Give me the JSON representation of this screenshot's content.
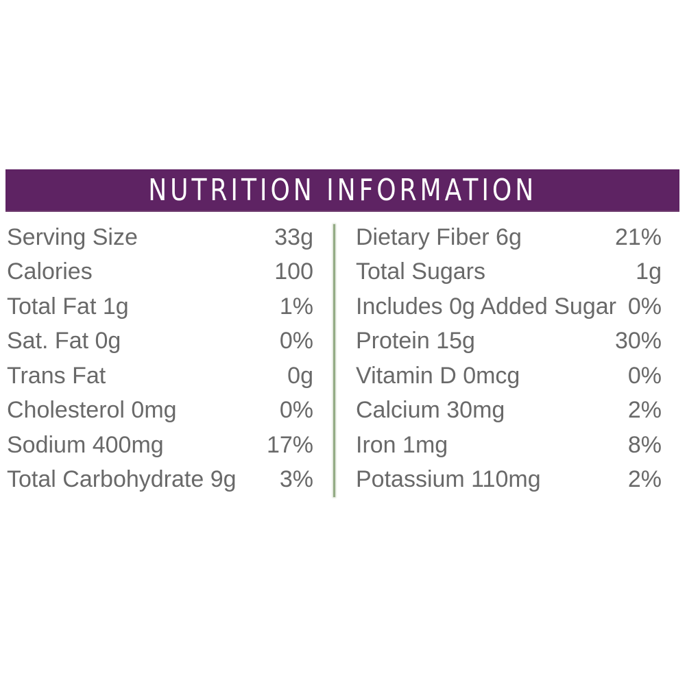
{
  "header": {
    "title": "NUTRITION INFORMATION",
    "background_color": "#5e2363",
    "text_color": "#ffffff"
  },
  "table": {
    "text_color": "#696969",
    "divider_color": "#94ab85",
    "left_column": {
      "rows": [
        {
          "label": "Serving Size",
          "value": "33g"
        },
        {
          "label": "Calories",
          "value": "100"
        },
        {
          "label": "Total Fat 1g",
          "value": "1%"
        },
        {
          "label": "Sat. Fat 0g",
          "value": "0%"
        },
        {
          "label": "Trans Fat",
          "value": "0g"
        },
        {
          "label": "Cholesterol 0mg",
          "value": "0%"
        },
        {
          "label": "Sodium 400mg",
          "value": "17%"
        },
        {
          "label": "Total Carbohydrate 9g",
          "value": "3%"
        }
      ]
    },
    "right_column": {
      "rows": [
        {
          "label": "Dietary Fiber 6g",
          "value": "21%"
        },
        {
          "label": "Total Sugars",
          "value": "1g"
        },
        {
          "label": "Includes 0g Added Sugar",
          "value": "0%"
        },
        {
          "label": "Protein 15g",
          "value": "30%"
        },
        {
          "label": "Vitamin D 0mcg",
          "value": "0%"
        },
        {
          "label": "Calcium 30mg",
          "value": "2%"
        },
        {
          "label": "Iron 1mg",
          "value": "8%"
        },
        {
          "label": "Potassium 110mg",
          "value": "2%"
        }
      ]
    }
  }
}
